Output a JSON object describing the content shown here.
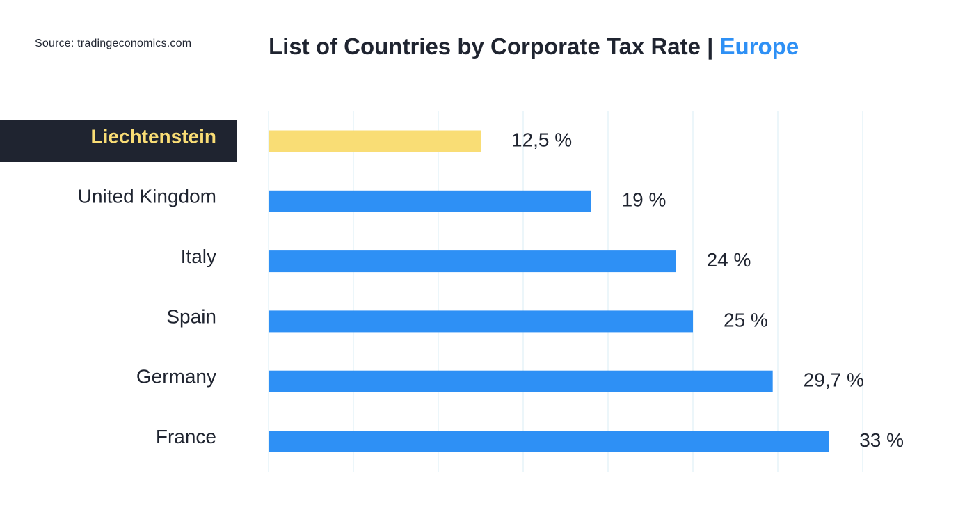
{
  "source_text": "Source: tradingeconomics.com",
  "title": {
    "main": "List of Countries by Corporate Tax Rate | ",
    "accent": "Europe"
  },
  "colors": {
    "bar": "#2e90f5",
    "highlight_bar": "#f9dd75",
    "highlight_label_bg": "#1f2430",
    "highlight_label_text": "#f9dd75",
    "text": "#1f2430",
    "grid": "#e6f3f8"
  },
  "chart_data": {
    "type": "bar",
    "orientation": "horizontal",
    "categories": [
      "Liechtenstein",
      "United Kingdom",
      "Italy",
      "Spain",
      "Germany",
      "France"
    ],
    "values": [
      12.5,
      19,
      24,
      25,
      29.7,
      33
    ],
    "value_labels": [
      "12,5 %",
      "19 %",
      "24 %",
      "25 %",
      "29,7 %",
      "33 %"
    ],
    "highlight": "Liechtenstein",
    "xlim": [
      0,
      35
    ],
    "grid": true,
    "title": "List of Countries by Corporate Tax Rate | Europe"
  }
}
